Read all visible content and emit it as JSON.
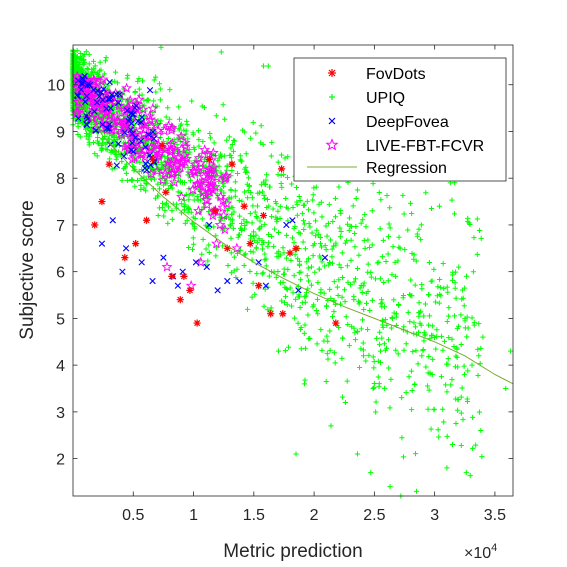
{
  "chart_data": {
    "type": "scatter",
    "title": "",
    "xlabel": "Metric prediction",
    "ylabel": "Subjective score",
    "x_exponent_base": "×10",
    "x_exponent_power": "4",
    "xlim": [
      0,
      36500
    ],
    "ylim": [
      1.2,
      10.85
    ],
    "x_ticks": [
      5000,
      10000,
      15000,
      20000,
      25000,
      30000,
      35000
    ],
    "x_tick_labels": [
      "0.5",
      "1",
      "1.5",
      "2",
      "2.5",
      "3",
      "3.5"
    ],
    "y_ticks": [
      2,
      3,
      4,
      5,
      6,
      7,
      8,
      9,
      10
    ],
    "y_tick_labels": [
      "2",
      "3",
      "4",
      "5",
      "6",
      "7",
      "8",
      "9",
      "10"
    ],
    "grid": false,
    "legend_position": "top-right",
    "colors": {
      "fovdots": "#ff0000",
      "upiq": "#00ff00",
      "deepfovea": "#0000ff",
      "live": "#ff00ff",
      "regression": "#77ac30",
      "axis": "#262626"
    },
    "series": [
      {
        "name": "FovDots",
        "marker": "asterisk",
        "color": "#ff0000",
        "points": [
          [
            1800,
            7.0
          ],
          [
            2400,
            7.5
          ],
          [
            3000,
            8.3
          ],
          [
            4300,
            6.3
          ],
          [
            5200,
            6.6
          ],
          [
            6600,
            8.4
          ],
          [
            7400,
            8.7
          ],
          [
            8200,
            5.9
          ],
          [
            8900,
            5.4
          ],
          [
            9200,
            5.9
          ],
          [
            9700,
            5.6
          ],
          [
            10300,
            4.9
          ],
          [
            11300,
            8.4
          ],
          [
            11800,
            7.3
          ],
          [
            12800,
            6.5
          ],
          [
            13200,
            8.3
          ],
          [
            14200,
            7.4
          ],
          [
            14700,
            6.6
          ],
          [
            15400,
            5.7
          ],
          [
            15800,
            7.2
          ],
          [
            16400,
            5.1
          ],
          [
            17300,
            8.2
          ],
          [
            17400,
            5.1
          ],
          [
            18000,
            6.4
          ],
          [
            18500,
            6.5
          ],
          [
            21800,
            4.9
          ],
          [
            6100,
            7.1
          ],
          [
            7700,
            7.7
          ]
        ]
      },
      {
        "name": "UPIQ",
        "marker": "plus",
        "color": "#00ff00",
        "generated_count": 2300,
        "points": [
          [
            31600,
            4.4
          ],
          [
            34000,
            4.6
          ],
          [
            36300,
            4.3
          ],
          [
            28500,
            1.3
          ],
          [
            27200,
            1.2
          ],
          [
            26300,
            1.4
          ],
          [
            23600,
            2.1
          ],
          [
            24700,
            1.7
          ],
          [
            18500,
            2.1
          ],
          [
            30400,
            7.4
          ],
          [
            28900,
            7.0
          ],
          [
            31300,
            7.9
          ],
          [
            16200,
            10.4
          ],
          [
            15800,
            10.4
          ],
          [
            12300,
            10.7
          ],
          [
            7300,
            10.8
          ],
          [
            16800,
            7.5
          ],
          [
            19200,
            3.6
          ],
          [
            21400,
            2.7
          ],
          [
            22600,
            3.2
          ],
          [
            24100,
            4.2
          ],
          [
            26500,
            5.0
          ],
          [
            29800,
            3.8
          ],
          [
            33100,
            4.0
          ],
          [
            35900,
            3.5
          ],
          [
            20300,
            5.1
          ],
          [
            25600,
            5.4
          ]
        ]
      },
      {
        "name": "DeepFovea",
        "marker": "x",
        "color": "#0000ff",
        "points": [
          [
            2400,
            6.6
          ],
          [
            4100,
            6.0
          ],
          [
            4400,
            6.5
          ],
          [
            5700,
            6.2
          ],
          [
            6600,
            5.8
          ],
          [
            7500,
            6.3
          ],
          [
            8300,
            5.9
          ],
          [
            8700,
            5.7
          ],
          [
            9100,
            6.0
          ],
          [
            10200,
            6.2
          ],
          [
            11300,
            7.0
          ],
          [
            12000,
            5.6
          ],
          [
            12800,
            5.8
          ],
          [
            13800,
            5.8
          ],
          [
            15400,
            6.2
          ],
          [
            16000,
            5.7
          ],
          [
            17700,
            7.0
          ],
          [
            18200,
            7.1
          ],
          [
            18700,
            5.6
          ],
          [
            20900,
            6.3
          ],
          [
            11100,
            6.1
          ],
          [
            3300,
            7.1
          ]
        ]
      },
      {
        "name": "LIVE-FBT-FCVR",
        "marker": "pentagram",
        "color": "#ff00ff",
        "generated_count": 260,
        "points": [
          [
            6900,
            8.4
          ],
          [
            8200,
            8.1
          ],
          [
            9000,
            7.6
          ],
          [
            10400,
            7.3
          ],
          [
            11600,
            7.2
          ],
          [
            12200,
            7.0
          ],
          [
            12600,
            6.9
          ],
          [
            13600,
            6.5
          ],
          [
            7800,
            6.1
          ],
          [
            9800,
            5.7
          ],
          [
            10600,
            6.2
          ],
          [
            11900,
            6.6
          ]
        ]
      },
      {
        "name": "Regression",
        "type": "line",
        "color": "#77ac30",
        "x": [
          0,
          2500,
          5000,
          7500,
          10000,
          12500,
          15000,
          17500,
          20000,
          22500,
          25000,
          27500,
          30000,
          32500,
          35000,
          36500
        ],
        "y": [
          9.85,
          8.9,
          8.2,
          7.6,
          7.07,
          6.6,
          6.2,
          5.85,
          5.53,
          5.25,
          5.0,
          4.75,
          4.5,
          4.2,
          3.8,
          3.6
        ]
      }
    ]
  }
}
